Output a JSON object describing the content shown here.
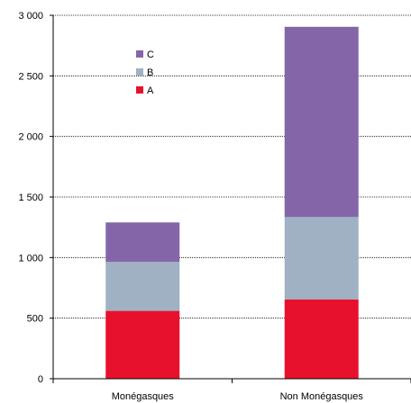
{
  "chart_data": {
    "type": "bar",
    "stacked": true,
    "categories": [
      "Monégasques",
      "Non Monégasques"
    ],
    "series": [
      {
        "name": "A",
        "color": "#e8112d",
        "values": [
          560,
          655
        ]
      },
      {
        "name": "B",
        "color": "#9fb1c2",
        "values": [
          405,
          680
        ]
      },
      {
        "name": "C",
        "color": "#8466a8",
        "values": [
          325,
          1570
        ]
      }
    ],
    "ylim": [
      0,
      3000
    ],
    "yticks": [
      0,
      500,
      1000,
      1500,
      2000,
      2500,
      3000
    ],
    "ytick_labels": [
      "0",
      "500",
      "1 000",
      "1 500",
      "2 000",
      "2 500",
      "3 000"
    ],
    "grid": true,
    "grid_style": "dotted",
    "legend_position": "top-left",
    "legend_order": [
      "C",
      "B",
      "A"
    ]
  }
}
